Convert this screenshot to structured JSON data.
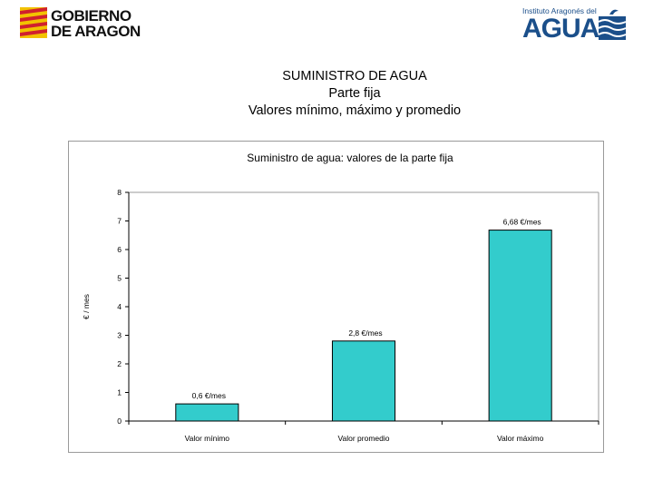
{
  "header": {
    "logo_left": {
      "line1": "GOBIERNO",
      "line2": "DE ARAGON"
    },
    "logo_right": {
      "institute": "Instituto Aragonés del",
      "word": "AGUA"
    }
  },
  "titles": {
    "line1": "SUMINISTRO DE AGUA",
    "line2": "Parte fija",
    "line3": "Valores mínimo, máximo y promedio"
  },
  "colors": {
    "bar_fill": "#33CCCC",
    "logo_yellow": "#F2C200",
    "logo_red": "#D0202E",
    "agua_blue": "#1B4F8A"
  },
  "chart_data": {
    "type": "bar",
    "title": "Suministro de agua: valores de la parte fija",
    "ylabel": "€ / mes",
    "xlabel": "",
    "categories": [
      "Valor mínimo",
      "Valor promedio",
      "Valor máximo"
    ],
    "values": [
      0.6,
      2.8,
      6.68
    ],
    "data_labels": [
      "0,6 €/mes",
      "2,8 €/mes",
      "6,68 €/mes"
    ],
    "ylim": [
      0,
      8
    ],
    "yticks": [
      "0",
      "1",
      "2",
      "3",
      "4",
      "5",
      "6",
      "7",
      "8"
    ],
    "grid": false,
    "legend": "none"
  }
}
